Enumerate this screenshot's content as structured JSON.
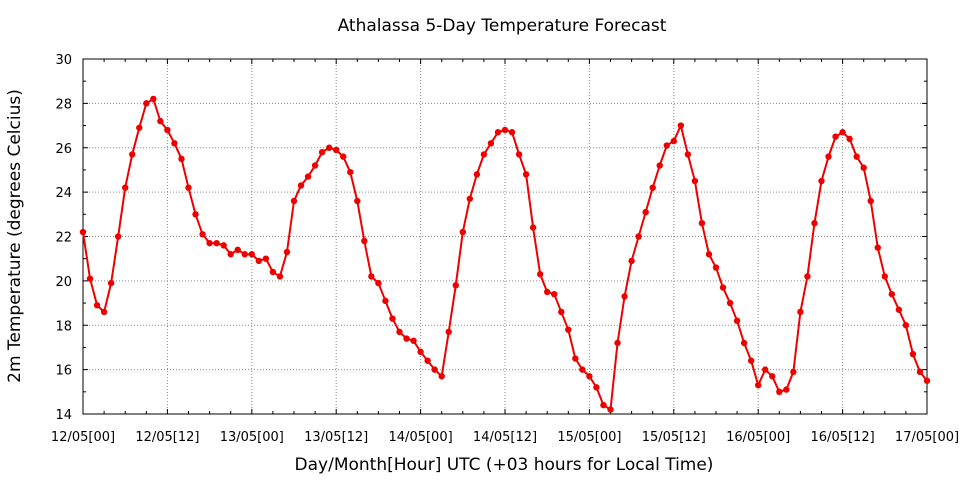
{
  "chart_data": {
    "type": "line",
    "title": "Athalassa 5-Day Temperature Forecast",
    "xlabel": "Day/Month[Hour] UTC (+03 hours for Local Time)",
    "ylabel": "2m Temperature (degrees Celcius)",
    "ylim": [
      14,
      30
    ],
    "yticks": [
      14,
      16,
      18,
      20,
      22,
      24,
      26,
      28,
      30
    ],
    "xlim": [
      0,
      120
    ],
    "xtick_positions": [
      0,
      12,
      24,
      36,
      48,
      60,
      72,
      84,
      96,
      108,
      120
    ],
    "xtick_labels": [
      "12/05[00]",
      "12/05[12]",
      "13/05[00]",
      "13/05[12]",
      "14/05[00]",
      "14/05[12]",
      "15/05[00]",
      "15/05[12]",
      "16/05[00]",
      "16/05[12]",
      "17/05[00]"
    ],
    "grid": true,
    "line_color": "#ee0000",
    "x_step_hours": 1,
    "series": [
      {
        "values": [
          22.2,
          20.1,
          18.9,
          18.6,
          19.9,
          22.0,
          24.2,
          25.7,
          26.9,
          28.0,
          28.2,
          27.2,
          26.8,
          26.2,
          25.5,
          24.2,
          23.0,
          22.1,
          21.7,
          21.7,
          21.6,
          21.2,
          21.4,
          21.2,
          21.2,
          20.9,
          21.0,
          20.4,
          20.2,
          21.3,
          23.6,
          24.3,
          24.7,
          25.2,
          25.8,
          26.0,
          25.9,
          25.6,
          24.9,
          23.6,
          21.8,
          20.2,
          19.9,
          19.1,
          18.3,
          17.7,
          17.4,
          17.3,
          16.8,
          16.4,
          16.0,
          15.7,
          17.7,
          19.8,
          22.2,
          23.7,
          24.8,
          25.7,
          26.2,
          26.7,
          26.8,
          26.7,
          25.7,
          24.8,
          22.4,
          20.3,
          19.5,
          19.4,
          18.6,
          17.8,
          16.5,
          16.0,
          15.7,
          15.2,
          14.4,
          14.2,
          17.2,
          19.3,
          20.9,
          22.0,
          23.1,
          24.2,
          25.2,
          26.1,
          26.3,
          27.0,
          25.7,
          24.5,
          22.6,
          21.2,
          20.6,
          19.7,
          19.0,
          18.2,
          17.2,
          16.4,
          15.3,
          16.0,
          15.7,
          15.0,
          15.1,
          15.9,
          18.6,
          20.2,
          22.6,
          24.5,
          25.6,
          26.5,
          26.7,
          26.4,
          25.6,
          25.1,
          23.6,
          21.5,
          20.2,
          19.4,
          18.7,
          18.0,
          16.7,
          15.9,
          15.5
        ]
      }
    ]
  }
}
